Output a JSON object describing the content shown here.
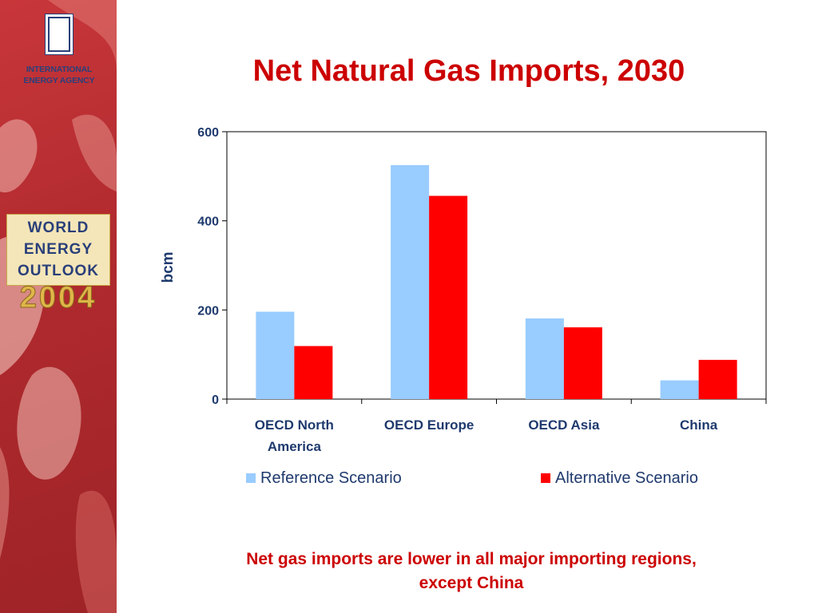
{
  "slide": {
    "title": "Net Natural Gas Imports, 2030",
    "caption_line1": "Net gas imports are lower in all major importing regions,",
    "caption_line2": "except China"
  },
  "sidebar": {
    "agency_line1": "INTERNATIONAL",
    "agency_line2": "ENERGY AGENCY",
    "weo_line1": "WORLD",
    "weo_line2": "ENERGY",
    "weo_line3": "OUTLOOK",
    "weo_year": "2004"
  },
  "colors": {
    "title": "#cc0000",
    "reference": "#99ccff",
    "alternative": "#ff0000",
    "axis_text": "#1f3a6e",
    "sidebar_red": "#b02a2e"
  },
  "chart_data": {
    "type": "bar",
    "categories": [
      [
        "OECD North",
        "America"
      ],
      [
        "OECD Europe"
      ],
      [
        "OECD Asia"
      ],
      [
        "China"
      ]
    ],
    "series": [
      {
        "name": "Reference Scenario",
        "values": [
          196,
          525,
          181,
          42
        ],
        "color": "#99ccff"
      },
      {
        "name": "Alternative Scenario",
        "values": [
          119,
          456,
          161,
          88
        ],
        "color": "#ff0000"
      }
    ],
    "ylabel": "bcm",
    "xlabel": "",
    "ylim": [
      0,
      600
    ],
    "yticks": [
      0,
      200,
      400,
      600
    ],
    "grid": false,
    "legend_position": "bottom"
  }
}
